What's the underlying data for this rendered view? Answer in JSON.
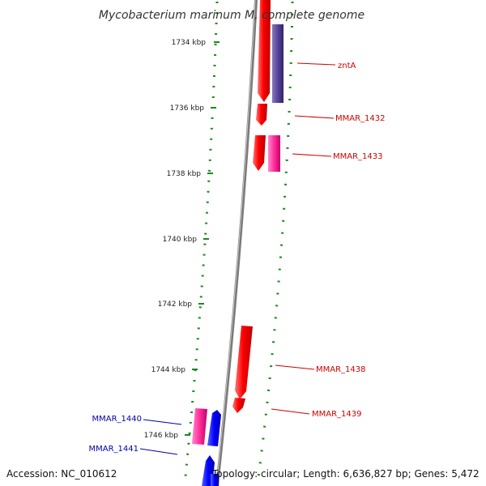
{
  "title": "Mycobacterium marinum M, complete genome",
  "ticks": [
    "1734 kbp",
    "1736 kbp",
    "1738 kbp",
    "1740 kbp",
    "1742 kbp",
    "1744 kbp",
    "1746 kbp"
  ],
  "genes": [
    {
      "label": "zntA",
      "color": "#cc0000"
    },
    {
      "label": "MMAR_1432",
      "color": "#cc0000"
    },
    {
      "label": "MMAR_1433",
      "color": "#cc0000"
    },
    {
      "label": "MMAR_1438",
      "color": "#cc0000"
    },
    {
      "label": "MMAR_1439",
      "color": "#cc0000"
    },
    {
      "label": "MMAR_1440",
      "color": "#0000aa"
    },
    {
      "label": "MMAR_1441",
      "color": "#0000aa"
    }
  ],
  "footer": {
    "accession": "Accession: NC_010612",
    "topology": "Topology: circular; Length: 6,636,827 bp; Genes: 5,472"
  },
  "colors": {
    "forward_strand": "#ff0000",
    "reverse_strand_pink": "#ff3399",
    "reverse_strand_purple": "#554499",
    "reverse_strand_blue": "#0000ff",
    "backbone": "#808080",
    "gc_dots": "#1a8a1a"
  }
}
